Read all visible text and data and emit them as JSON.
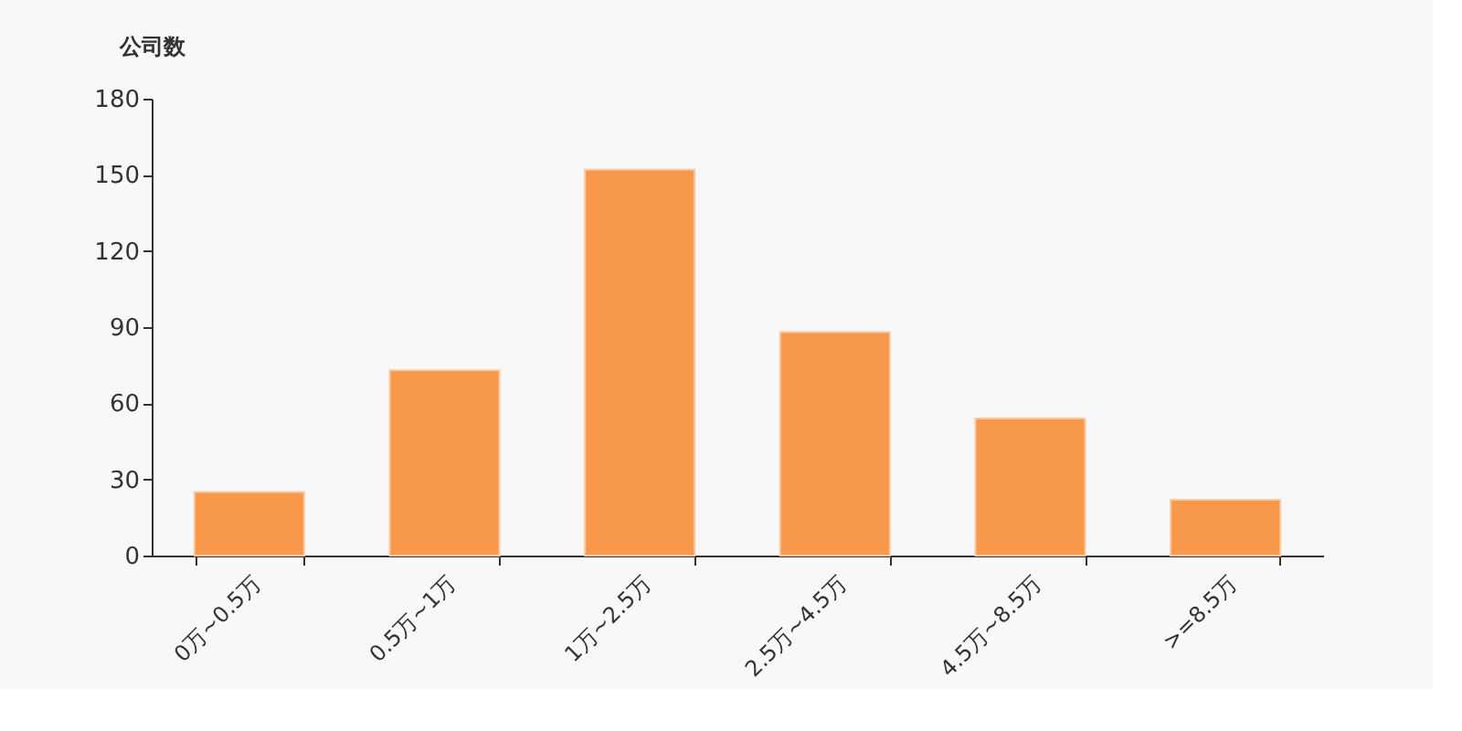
{
  "chart_data": {
    "type": "bar",
    "ylabel": "公司数",
    "categories": [
      "0万~0.5万",
      "0.5万~1万",
      "1万~2.5万",
      "2.5万~4.5万",
      "4.5万~8.5万",
      ">=8.5万"
    ],
    "values": [
      25,
      73,
      152,
      88,
      54,
      22
    ],
    "color": "#f7984a",
    "ylim": [
      0,
      180
    ],
    "yticks": [
      0,
      30,
      60,
      90,
      120,
      150,
      180
    ],
    "grid": false
  }
}
